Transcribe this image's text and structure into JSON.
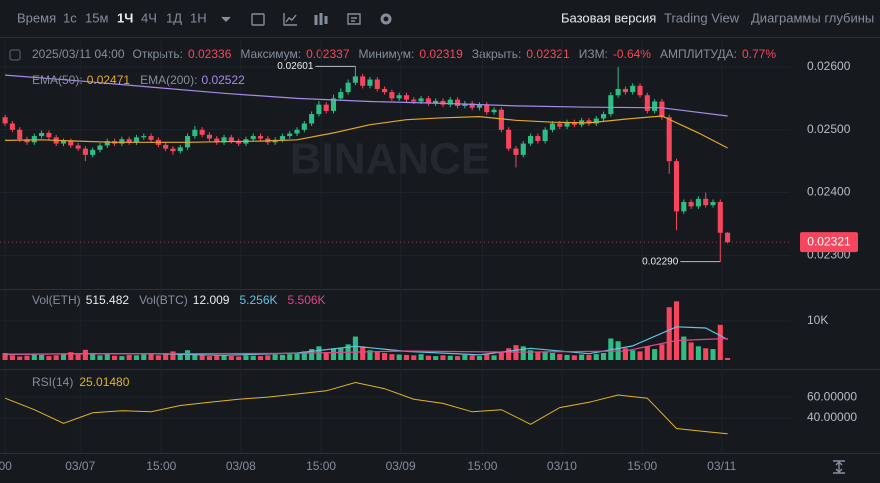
{
  "toolbar": {
    "intervals": [
      "Время",
      "1с",
      "15м",
      "1Ч",
      "4Ч",
      "1Д",
      "1Н"
    ],
    "views": [
      "Базовая версия",
      "Trading View",
      "Диаграммы глубины"
    ]
  },
  "info": {
    "time": "2025/03/11 04:00",
    "items": [
      {
        "label": "Открыть:",
        "value": "0.02336"
      },
      {
        "label": "Максимум:",
        "value": "0.02337"
      },
      {
        "label": "Минимум:",
        "value": "0.02319"
      },
      {
        "label": "Закрыть:",
        "value": "0.02321"
      },
      {
        "label": "ИЗМ:",
        "value": "-0.64%"
      },
      {
        "label": "АМПЛИТУДА:",
        "value": "0.77%"
      }
    ]
  },
  "chart_data": [
    {
      "type": "candlestick",
      "watermark": "BINANCE",
      "grid": true,
      "up_color": "#2ebd85",
      "down_color": "#f6465d",
      "open": [
        0.0252,
        0.0251,
        0.025,
        0.02485,
        0.0248,
        0.0249,
        0.02495,
        0.02488,
        0.02478,
        0.02482,
        0.02475,
        0.0247,
        0.0246,
        0.02468,
        0.02475,
        0.02482,
        0.02478,
        0.02485,
        0.0248,
        0.02488,
        0.0249,
        0.02484,
        0.02476,
        0.0247,
        0.02466,
        0.02472,
        0.0249,
        0.025,
        0.02492,
        0.02486,
        0.0248,
        0.02488,
        0.02482,
        0.02478,
        0.02485,
        0.0249,
        0.02486,
        0.0248,
        0.02484,
        0.0249,
        0.02494,
        0.025,
        0.0251,
        0.02525,
        0.0254,
        0.0253,
        0.0255,
        0.0256,
        0.02575,
        0.02585,
        0.0257,
        0.0258,
        0.02565,
        0.0256,
        0.0255,
        0.02555,
        0.02548,
        0.02545,
        0.0255,
        0.02542,
        0.02546,
        0.0254,
        0.02548,
        0.02538,
        0.02542,
        0.02535,
        0.0254,
        0.02528,
        0.02532,
        0.025,
        0.0247,
        0.0246,
        0.02478,
        0.0249,
        0.02482,
        0.025,
        0.0251,
        0.02505,
        0.02512,
        0.02508,
        0.02515,
        0.0251,
        0.02518,
        0.02525,
        0.02555,
        0.02565,
        0.0256,
        0.0257,
        0.02555,
        0.0253,
        0.02545,
        0.0252,
        0.0245,
        0.0237,
        0.02385,
        0.02378,
        0.0239,
        0.0238,
        0.02385,
        0.02336
      ],
      "high": [
        0.02524,
        0.02514,
        0.02504,
        0.02489,
        0.02494,
        0.02499,
        0.02499,
        0.02492,
        0.02486,
        0.02486,
        0.02479,
        0.02474,
        0.02472,
        0.02479,
        0.02486,
        0.02486,
        0.02489,
        0.02489,
        0.02492,
        0.02494,
        0.02494,
        0.02488,
        0.0248,
        0.02474,
        0.02476,
        0.02494,
        0.02506,
        0.02504,
        0.02496,
        0.0249,
        0.02492,
        0.02492,
        0.02486,
        0.02489,
        0.02494,
        0.02494,
        0.0249,
        0.02488,
        0.02494,
        0.02498,
        0.02504,
        0.02514,
        0.02529,
        0.02546,
        0.02544,
        0.02556,
        0.02566,
        0.0258,
        0.02601,
        0.02589,
        0.02584,
        0.02584,
        0.02569,
        0.02564,
        0.02559,
        0.02559,
        0.02552,
        0.02554,
        0.02554,
        0.0255,
        0.0255,
        0.02552,
        0.02552,
        0.02546,
        0.02546,
        0.02544,
        0.02544,
        0.02536,
        0.02536,
        0.02504,
        0.02474,
        0.02482,
        0.02494,
        0.02494,
        0.02504,
        0.02514,
        0.02514,
        0.02516,
        0.02516,
        0.02519,
        0.02519,
        0.02522,
        0.02529,
        0.0256,
        0.026,
        0.02569,
        0.02574,
        0.02574,
        0.02559,
        0.02549,
        0.02549,
        0.02524,
        0.02454,
        0.02389,
        0.02389,
        0.02394,
        0.024,
        0.02389,
        0.02389,
        0.02337
      ],
      "low": [
        0.02506,
        0.02496,
        0.02481,
        0.02476,
        0.02476,
        0.02486,
        0.02484,
        0.02474,
        0.02474,
        0.02471,
        0.02466,
        0.0245,
        0.02456,
        0.02464,
        0.02471,
        0.02474,
        0.02474,
        0.02476,
        0.02476,
        0.02484,
        0.0248,
        0.02472,
        0.02466,
        0.0246,
        0.02462,
        0.02468,
        0.02486,
        0.02488,
        0.02482,
        0.02476,
        0.02476,
        0.02478,
        0.02474,
        0.02474,
        0.02481,
        0.02482,
        0.02476,
        0.02476,
        0.0248,
        0.02486,
        0.0249,
        0.02496,
        0.02506,
        0.02521,
        0.02526,
        0.02526,
        0.02546,
        0.02556,
        0.02571,
        0.02566,
        0.02566,
        0.02561,
        0.02556,
        0.02546,
        0.02546,
        0.02544,
        0.02541,
        0.02541,
        0.02538,
        0.02538,
        0.02536,
        0.02536,
        0.02534,
        0.02534,
        0.02531,
        0.02531,
        0.02524,
        0.02524,
        0.02496,
        0.02466,
        0.0244,
        0.02456,
        0.02474,
        0.02478,
        0.02478,
        0.02496,
        0.02501,
        0.02501,
        0.02504,
        0.02504,
        0.02506,
        0.02506,
        0.02514,
        0.02521,
        0.02551,
        0.02556,
        0.02556,
        0.02551,
        0.02526,
        0.02526,
        0.02516,
        0.0243,
        0.0234,
        0.02366,
        0.02374,
        0.02374,
        0.02376,
        0.02376,
        0.0229,
        0.02319
      ],
      "close": [
        0.0251,
        0.025,
        0.02485,
        0.0248,
        0.0249,
        0.02495,
        0.02488,
        0.02478,
        0.02482,
        0.02475,
        0.0247,
        0.0246,
        0.02468,
        0.02475,
        0.02482,
        0.02478,
        0.02485,
        0.0248,
        0.02488,
        0.0249,
        0.02484,
        0.02476,
        0.0247,
        0.02466,
        0.02472,
        0.0249,
        0.025,
        0.02492,
        0.02486,
        0.0248,
        0.02488,
        0.02482,
        0.02478,
        0.02485,
        0.0249,
        0.02486,
        0.0248,
        0.02484,
        0.0249,
        0.02494,
        0.025,
        0.0251,
        0.02525,
        0.0254,
        0.0253,
        0.0255,
        0.0256,
        0.02575,
        0.02585,
        0.0257,
        0.0258,
        0.02565,
        0.0256,
        0.0255,
        0.02555,
        0.02548,
        0.02545,
        0.0255,
        0.02542,
        0.02546,
        0.0254,
        0.02548,
        0.02538,
        0.02542,
        0.02535,
        0.0254,
        0.02528,
        0.02532,
        0.025,
        0.0247,
        0.0246,
        0.02478,
        0.0249,
        0.02482,
        0.025,
        0.0251,
        0.02505,
        0.02512,
        0.02508,
        0.02515,
        0.0251,
        0.02518,
        0.02525,
        0.02555,
        0.02565,
        0.0256,
        0.0257,
        0.02555,
        0.0253,
        0.02545,
        0.0252,
        0.0245,
        0.0237,
        0.02385,
        0.02378,
        0.0239,
        0.0238,
        0.02385,
        0.02336,
        0.02321
      ],
      "series": [
        {
          "name": "EMA(50):",
          "value_label": "0.02471",
          "color": "#e4a72a",
          "x": [
            0,
            5,
            10,
            15,
            20,
            25,
            30,
            35,
            40,
            45,
            50,
            55,
            60,
            65,
            70,
            75,
            80,
            85,
            90,
            95,
            99
          ],
          "values": [
            0.02483,
            0.02484,
            0.02482,
            0.0248,
            0.0248,
            0.0248,
            0.02481,
            0.02482,
            0.02484,
            0.02495,
            0.02508,
            0.02516,
            0.02519,
            0.02521,
            0.02515,
            0.02512,
            0.02511,
            0.02517,
            0.02522,
            0.02495,
            0.02471
          ]
        },
        {
          "name": "EMA(200):",
          "value_label": "0.02522",
          "color": "#a68be8",
          "x": [
            0,
            10,
            20,
            30,
            40,
            50,
            60,
            70,
            80,
            90,
            99
          ],
          "values": [
            0.02587,
            0.02578,
            0.02568,
            0.02558,
            0.0255,
            0.02545,
            0.02542,
            0.02538,
            0.02536,
            0.02535,
            0.02522
          ]
        }
      ],
      "annotations": [
        {
          "text": "0.02601",
          "x": 48,
          "value": 0.02601
        },
        {
          "text": "0.02290",
          "x": 98,
          "value": 0.0229
        }
      ],
      "last_price": {
        "value": 0.02321,
        "label": "0.02321"
      },
      "xlim": [
        -0.7,
        100.7
      ],
      "xticks": [
        {
          "value": 0,
          "label": "00"
        },
        {
          "value": 10.3,
          "label": "03/07"
        },
        {
          "value": 21.4,
          "label": "15:00"
        },
        {
          "value": 32.3,
          "label": "03/08"
        },
        {
          "value": 43.3,
          "label": "15:00"
        },
        {
          "value": 54.2,
          "label": "03/09"
        },
        {
          "value": 65.4,
          "label": "15:00"
        },
        {
          "value": 76.3,
          "label": "03/10"
        },
        {
          "value": 87.3,
          "label": "15:00"
        },
        {
          "value": 98.2,
          "label": "03/11"
        }
      ],
      "ylim": [
        0.02248,
        0.02635
      ],
      "yticks": [
        {
          "value": 0.026,
          "label": "0.02600"
        },
        {
          "value": 0.025,
          "label": "0.02500"
        },
        {
          "value": 0.024,
          "label": "0.02400"
        },
        {
          "value": 0.023,
          "label": "0.02300"
        }
      ]
    },
    {
      "type": "bar",
      "title": "Vol(ETH)",
      "title_value": "515.482",
      "subtitle": "Vol(BTC)",
      "subtitle_value": "12.009",
      "values": [
        1800,
        1200,
        900,
        1100,
        1500,
        1300,
        1000,
        1200,
        1600,
        2000,
        1400,
        2600,
        1800,
        1200,
        1500,
        1100,
        1000,
        1300,
        1200,
        1400,
        1500,
        1200,
        1800,
        2200,
        1400,
        2500,
        1600,
        1200,
        1000,
        1100,
        1300,
        1000,
        900,
        1200,
        1100,
        1000,
        1200,
        1400,
        1300,
        1500,
        1800,
        2200,
        2800,
        3500,
        2000,
        3000,
        3200,
        4000,
        6000,
        3500,
        2500,
        2200,
        1800,
        1500,
        1400,
        1300,
        1200,
        1500,
        1100,
        1000,
        1200,
        1100,
        1000,
        1300,
        1200,
        1000,
        1400,
        1200,
        2200,
        3000,
        3800,
        3500,
        2500,
        2000,
        2200,
        1800,
        1500,
        1300,
        1200,
        1400,
        1300,
        1500,
        1800,
        5500,
        4800,
        3000,
        2500,
        2200,
        3500,
        2800,
        4000,
        13500,
        15000,
        6000,
        4500,
        3500,
        3000,
        2800,
        9000,
        515.482
      ],
      "series": [
        {
          "value_label": "5.256K",
          "color": "#5fc5e6",
          "x": [
            0,
            10,
            20,
            30,
            40,
            48,
            55,
            65,
            72,
            80,
            86,
            92,
            96,
            99
          ],
          "values": [
            1400,
            1600,
            1600,
            1200,
            1800,
            3500,
            2200,
            1300,
            3000,
            1600,
            3600,
            8500,
            8200,
            5256
          ]
        },
        {
          "value_label": "5.506K",
          "color": "#e0468b",
          "x": [
            0,
            20,
            40,
            55,
            70,
            85,
            92,
            99
          ],
          "values": [
            1500,
            1600,
            1700,
            2300,
            2000,
            2300,
            5000,
            5506
          ]
        }
      ],
      "ylim": [
        0,
        17400
      ],
      "yticks": [
        {
          "value": 10000,
          "label": "10K"
        }
      ]
    },
    {
      "type": "line",
      "title": "RSI(14)",
      "value_label": "25.01480",
      "color": "#e6b41e",
      "x": [
        0,
        4,
        8,
        12,
        16,
        20,
        24,
        28,
        32,
        36,
        40,
        44,
        48,
        52,
        56,
        60,
        64,
        68,
        72,
        76,
        80,
        84,
        88,
        92,
        96,
        99
      ],
      "values": [
        59,
        48,
        35,
        45,
        47,
        46,
        52,
        55,
        58,
        60,
        63,
        66,
        74,
        68,
        58,
        54,
        46,
        48,
        34,
        50,
        55,
        62,
        59,
        30,
        27,
        25.0148
      ],
      "ylim": [
        19,
        84
      ],
      "yticks": [
        {
          "value": 60,
          "label": "60.00000"
        },
        {
          "value": 40,
          "label": "40.00000"
        }
      ]
    }
  ]
}
